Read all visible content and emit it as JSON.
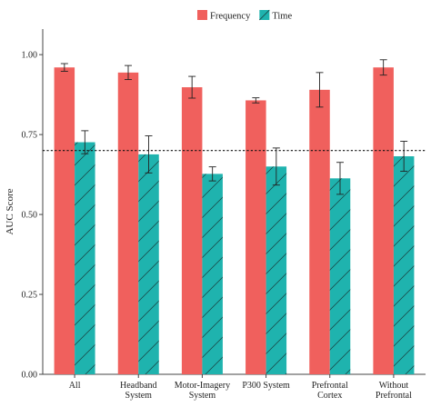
{
  "chart_data": {
    "type": "bar",
    "ylabel": "AUC Score",
    "ylim": [
      0,
      1.08
    ],
    "yticks": [
      "0.00",
      "0.25",
      "0.50",
      "0.75",
      "1.00"
    ],
    "categories": [
      [
        "All"
      ],
      [
        "Headband",
        "System"
      ],
      [
        "Motor-Imagery",
        "System"
      ],
      [
        "P300 System"
      ],
      [
        "Prefrontal",
        "Cortex"
      ],
      [
        "Without",
        "Prefrontal"
      ]
    ],
    "series": [
      {
        "name": "Frequency",
        "color": "#F0605D",
        "values": [
          0.96,
          0.944,
          0.898,
          0.857,
          0.89,
          0.96
        ],
        "error": [
          0.012,
          0.022,
          0.034,
          0.008,
          0.054,
          0.024
        ]
      },
      {
        "name": "Time",
        "color": "#1FB3AE",
        "pattern": "hatch",
        "values": [
          0.726,
          0.688,
          0.627,
          0.65,
          0.613,
          0.682
        ],
        "error": [
          0.036,
          0.058,
          0.022,
          0.058,
          0.05,
          0.047
        ]
      }
    ],
    "reference_line": 0.7,
    "legend_position": "top-center",
    "grid": false
  }
}
